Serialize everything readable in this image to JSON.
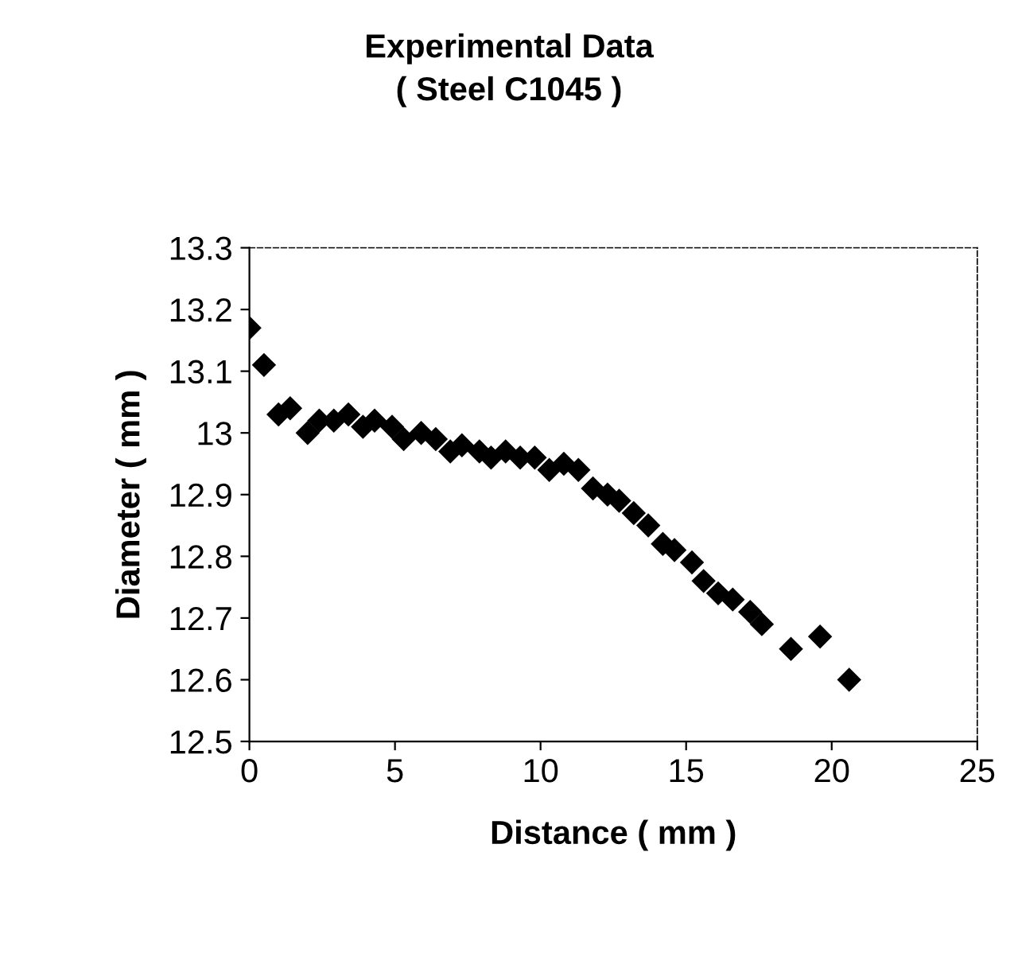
{
  "chart_data": {
    "type": "scatter",
    "title": "Experimental Data\n( Steel C1045 )",
    "xlabel": "Distance ( mm )",
    "ylabel": "Diameter ( mm )",
    "x": [
      0,
      0.5,
      1.0,
      1.4,
      2.0,
      2.4,
      2.9,
      3.4,
      3.9,
      4.3,
      4.9,
      5.3,
      5.9,
      6.4,
      6.9,
      7.3,
      7.9,
      8.3,
      8.8,
      9.3,
      9.8,
      10.3,
      10.8,
      11.3,
      11.8,
      12.3,
      12.7,
      13.2,
      13.7,
      14.2,
      14.6,
      15.2,
      15.6,
      16.1,
      16.6,
      17.2,
      17.6,
      18.6,
      19.6,
      20.6
    ],
    "series": [
      {
        "color": "#000000",
        "values": [
          13.17,
          13.11,
          13.03,
          13.04,
          13.0,
          13.02,
          13.02,
          13.03,
          13.01,
          13.02,
          13.01,
          12.99,
          13.0,
          12.99,
          12.97,
          12.98,
          12.97,
          12.96,
          12.97,
          12.96,
          12.96,
          12.94,
          12.95,
          12.94,
          12.91,
          12.9,
          12.89,
          12.87,
          12.85,
          12.82,
          12.81,
          12.79,
          12.76,
          12.74,
          12.73,
          12.71,
          12.69,
          12.65,
          12.67,
          12.6
        ]
      }
    ],
    "xlim": [
      0,
      25
    ],
    "xticks": [
      0,
      5,
      10,
      15,
      20,
      25
    ],
    "ylim": [
      12.5,
      13.3
    ],
    "yticks": [
      12.5,
      12.6,
      12.7,
      12.8,
      12.9,
      13,
      13.1,
      13.2,
      13.3
    ],
    "marker": "diamond",
    "grid": false,
    "legend": false
  }
}
